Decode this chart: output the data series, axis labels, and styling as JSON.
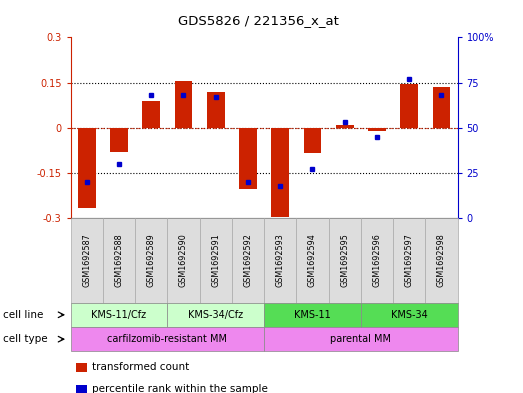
{
  "title": "GDS5826 / 221356_x_at",
  "samples": [
    "GSM1692587",
    "GSM1692588",
    "GSM1692589",
    "GSM1692590",
    "GSM1692591",
    "GSM1692592",
    "GSM1692593",
    "GSM1692594",
    "GSM1692595",
    "GSM1692596",
    "GSM1692597",
    "GSM1692598"
  ],
  "transformed_count": [
    -0.265,
    -0.08,
    0.09,
    0.155,
    0.12,
    -0.205,
    -0.295,
    -0.085,
    0.01,
    -0.01,
    0.145,
    0.135
  ],
  "percentile_rank": [
    20,
    30,
    68,
    68,
    67,
    20,
    18,
    27,
    53,
    45,
    77,
    68
  ],
  "ylim_left": [
    -0.3,
    0.3
  ],
  "ylim_right": [
    0,
    100
  ],
  "yticks_left": [
    -0.3,
    -0.15,
    0,
    0.15,
    0.3
  ],
  "yticks_right": [
    0,
    25,
    50,
    75,
    100
  ],
  "ytick_labels_left": [
    "-0.3",
    "-0.15",
    "0",
    "0.15",
    "0.3"
  ],
  "ytick_labels_right": [
    "0",
    "25",
    "50",
    "75",
    "100%"
  ],
  "hlines": [
    -0.15,
    0,
    0.15
  ],
  "bar_color": "#cc2200",
  "dot_color": "#0000cc",
  "cell_line_groups": [
    {
      "label": "KMS-11/Cfz",
      "start": 0,
      "end": 2,
      "color": "#ccffcc"
    },
    {
      "label": "KMS-34/Cfz",
      "start": 3,
      "end": 5,
      "color": "#ccffcc"
    },
    {
      "label": "KMS-11",
      "start": 6,
      "end": 8,
      "color": "#55dd55"
    },
    {
      "label": "KMS-34",
      "start": 9,
      "end": 11,
      "color": "#55dd55"
    }
  ],
  "cell_type_groups": [
    {
      "label": "carfilzomib-resistant MM",
      "start": 0,
      "end": 5,
      "color": "#ee88ee"
    },
    {
      "label": "parental MM",
      "start": 6,
      "end": 11,
      "color": "#ee88ee"
    }
  ],
  "cell_line_label": "cell line",
  "cell_type_label": "cell type",
  "legend_items": [
    {
      "color": "#cc2200",
      "label": "transformed count"
    },
    {
      "color": "#0000cc",
      "label": "percentile rank within the sample"
    }
  ],
  "bg_color": "#ffffff",
  "plot_bg": "#ffffff",
  "bar_width": 0.55,
  "sample_box_color": "#dddddd",
  "sample_box_border": "#aaaaaa"
}
